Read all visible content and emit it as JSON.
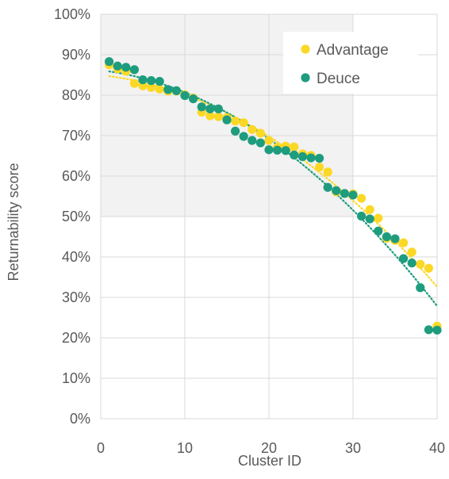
{
  "chart_data": {
    "type": "scatter",
    "title": "",
    "xlabel": "Cluster ID",
    "ylabel": "Returnability score",
    "xlim": [
      0,
      40
    ],
    "ylim": [
      0,
      100
    ],
    "x_ticks": [
      0,
      10,
      20,
      30,
      40
    ],
    "y_ticks": [
      0,
      10,
      20,
      30,
      40,
      50,
      60,
      70,
      80,
      90,
      100
    ],
    "y_tick_labels": [
      "0%",
      "10%",
      "20%",
      "30%",
      "40%",
      "50%",
      "60%",
      "70%",
      "80%",
      "90%",
      "100%"
    ],
    "x_tick_labels": [
      "0",
      "10",
      "20",
      "30",
      "40"
    ],
    "grid": true,
    "shaded_region": {
      "x": [
        0,
        30
      ],
      "y": [
        50,
        100
      ],
      "color": "#F2F2F2"
    },
    "legend_position": "top-right",
    "series": [
      {
        "name": "Advantage",
        "color": "#FCD826",
        "trendline": "dotted",
        "points": [
          [
            1,
            87.5
          ],
          [
            2,
            86.5
          ],
          [
            3,
            85.9
          ],
          [
            4,
            82.9
          ],
          [
            5,
            82.3
          ],
          [
            6,
            81.9
          ],
          [
            7,
            81.5
          ],
          [
            8,
            81.0
          ],
          [
            9,
            81.0
          ],
          [
            10,
            80.1
          ],
          [
            11,
            79.3
          ],
          [
            12,
            75.8
          ],
          [
            13,
            74.9
          ],
          [
            14,
            74.7
          ],
          [
            15,
            74.4
          ],
          [
            16,
            73.6
          ],
          [
            17,
            73.2
          ],
          [
            18,
            71.5
          ],
          [
            19,
            70.6
          ],
          [
            20,
            68.8
          ],
          [
            21,
            67.1
          ],
          [
            22,
            67.4
          ],
          [
            23,
            67.2
          ],
          [
            24,
            65.5
          ],
          [
            25,
            65.1
          ],
          [
            26,
            62.2
          ],
          [
            27,
            61.0
          ],
          [
            28,
            56.1
          ],
          [
            29,
            55.7
          ],
          [
            30,
            55.6
          ],
          [
            31,
            54.5
          ],
          [
            32,
            51.7
          ],
          [
            33,
            49.6
          ],
          [
            34,
            44.6
          ],
          [
            35,
            44.1
          ],
          [
            36,
            43.5
          ],
          [
            37,
            41.2
          ],
          [
            38,
            38.2
          ],
          [
            39,
            37.2
          ],
          [
            40,
            22.9
          ]
        ]
      },
      {
        "name": "Deuce",
        "color": "#1E9C7E",
        "trendline": "dotted",
        "points": [
          [
            1,
            88.3
          ],
          [
            2,
            87.2
          ],
          [
            3,
            86.9
          ],
          [
            4,
            86.3
          ],
          [
            5,
            83.8
          ],
          [
            6,
            83.6
          ],
          [
            7,
            83.4
          ],
          [
            8,
            81.4
          ],
          [
            9,
            81.1
          ],
          [
            10,
            79.9
          ],
          [
            11,
            79.1
          ],
          [
            12,
            77.1
          ],
          [
            13,
            76.6
          ],
          [
            14,
            76.6
          ],
          [
            15,
            73.9
          ],
          [
            16,
            71.1
          ],
          [
            17,
            69.8
          ],
          [
            18,
            68.8
          ],
          [
            19,
            68.2
          ],
          [
            20,
            66.5
          ],
          [
            21,
            66.4
          ],
          [
            22,
            66.3
          ],
          [
            23,
            65.2
          ],
          [
            24,
            64.8
          ],
          [
            25,
            64.5
          ],
          [
            26,
            64.4
          ],
          [
            27,
            57.2
          ],
          [
            28,
            56.4
          ],
          [
            29,
            55.7
          ],
          [
            30,
            55.3
          ],
          [
            31,
            50.1
          ],
          [
            32,
            49.4
          ],
          [
            33,
            46.4
          ],
          [
            34,
            45.0
          ],
          [
            35,
            44.5
          ],
          [
            36,
            39.6
          ],
          [
            37,
            38.5
          ],
          [
            38,
            32.4
          ],
          [
            39,
            22.0
          ],
          [
            40,
            21.9
          ]
        ]
      }
    ]
  }
}
